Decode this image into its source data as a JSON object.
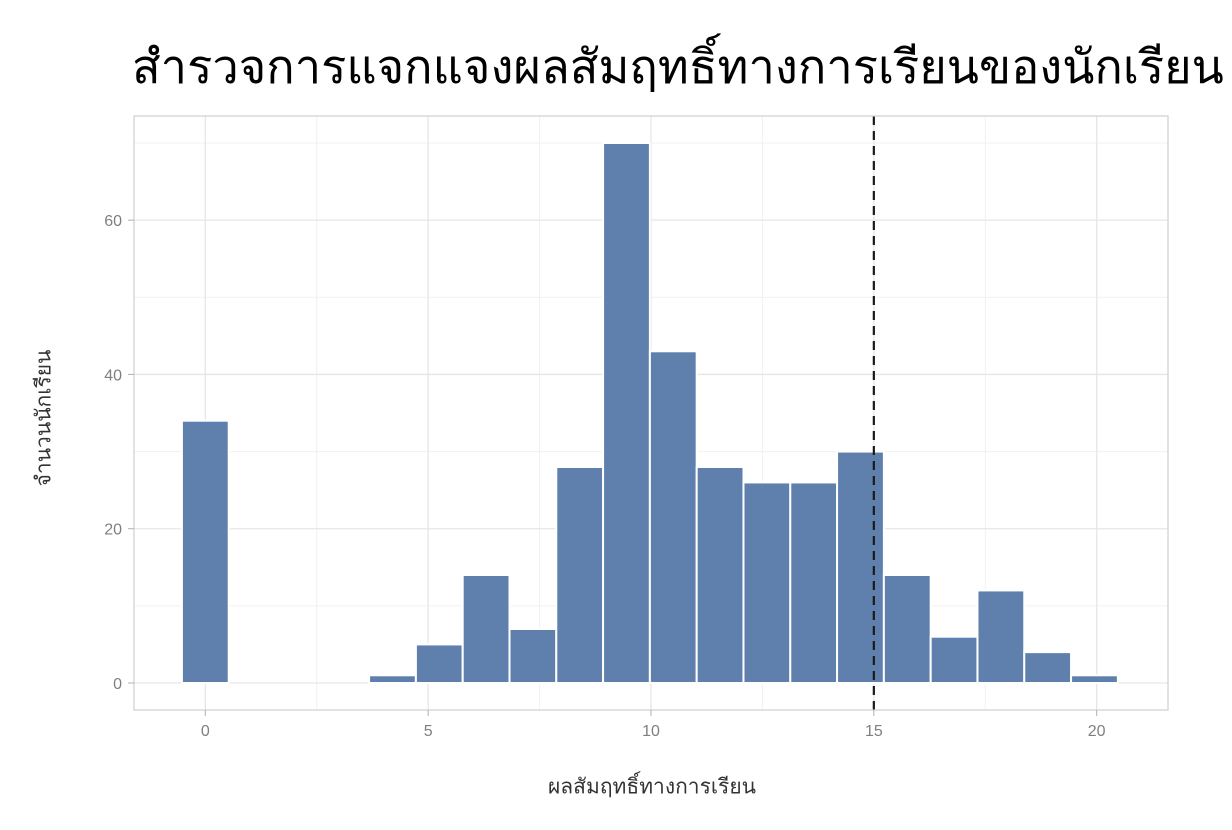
{
  "chart_data": {
    "type": "bar",
    "title": "สำรวจการแจกแจงผลสัมฤทธิ์ทางการเรียนของนักเรียน",
    "xlabel": "ผลสัมฤทธิ์ทางการเรียน",
    "ylabel": "จำนวนนักเรียน",
    "bins": [
      {
        "x": 0,
        "count": 34
      },
      {
        "x": 4.2,
        "count": 1
      },
      {
        "x": 5.25,
        "count": 5
      },
      {
        "x": 6.3,
        "count": 14
      },
      {
        "x": 7.35,
        "count": 7
      },
      {
        "x": 8.4,
        "count": 28
      },
      {
        "x": 9.45,
        "count": 70
      },
      {
        "x": 10.5,
        "count": 43
      },
      {
        "x": 11.55,
        "count": 28
      },
      {
        "x": 12.6,
        "count": 26
      },
      {
        "x": 13.65,
        "count": 26
      },
      {
        "x": 14.7,
        "count": 30
      },
      {
        "x": 15.75,
        "count": 14
      },
      {
        "x": 16.8,
        "count": 6
      },
      {
        "x": 17.85,
        "count": 12
      },
      {
        "x": 18.9,
        "count": 4
      },
      {
        "x": 19.95,
        "count": 1
      }
    ],
    "bin_width": 1.05,
    "xlim": [
      -1.6,
      21.6
    ],
    "ylim": [
      -3.5,
      73.5
    ],
    "x_ticks": [
      0,
      5,
      10,
      15,
      20
    ],
    "y_ticks": [
      0,
      20,
      40,
      60
    ],
    "reference_line": {
      "x": 15,
      "style": "dashed"
    },
    "bar_color": "#5f7fad",
    "grid": true,
    "legend": "none"
  }
}
